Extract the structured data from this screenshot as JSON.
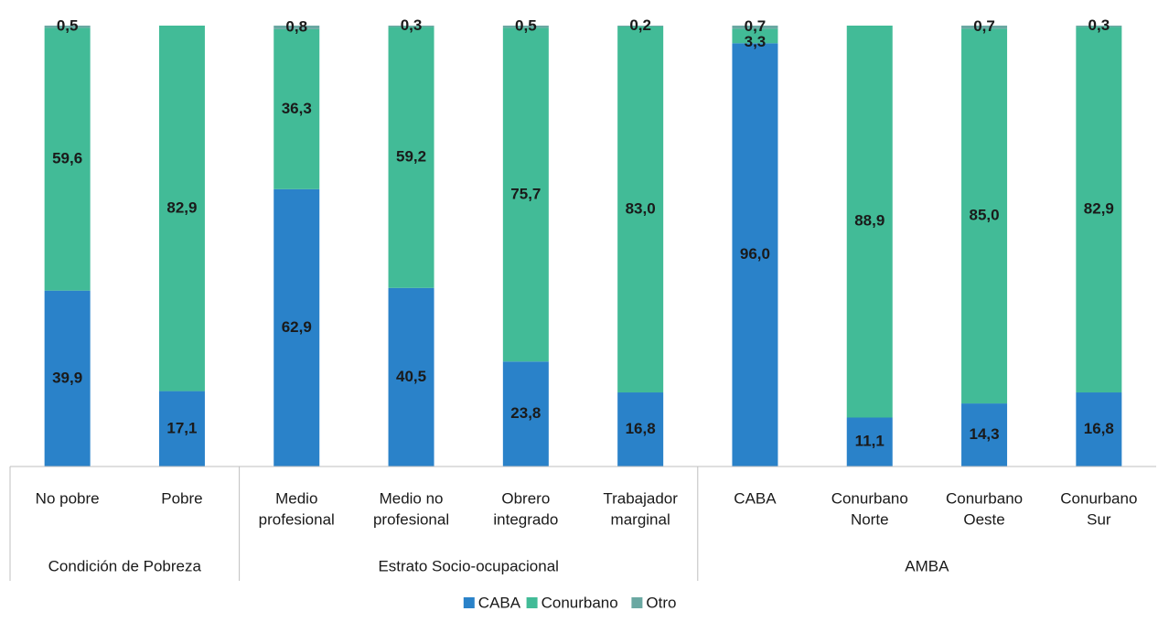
{
  "chart_data": {
    "type": "stacked_bar",
    "ylim": [
      0,
      100
    ],
    "groups": [
      {
        "label": "Condición de Pobreza",
        "categories": [
          [
            "No pobre"
          ],
          [
            "Pobre"
          ]
        ]
      },
      {
        "label": "Estrato Socio-ocupacional",
        "categories": [
          [
            "Medio",
            "profesional"
          ],
          [
            "Medio no",
            "profesional"
          ],
          [
            "Obrero",
            "integrado"
          ],
          [
            "Trabajador",
            "marginal"
          ]
        ]
      },
      {
        "label": "AMBA",
        "categories": [
          [
            "CABA"
          ],
          [
            "Conurbano",
            "Norte"
          ],
          [
            "Conurbano",
            "Oeste"
          ],
          [
            "Conurbano",
            "Sur"
          ]
        ]
      }
    ],
    "series": [
      {
        "name": "CABA",
        "color": "#2a82c9",
        "values": [
          39.9,
          17.1,
          62.9,
          40.5,
          23.8,
          16.8,
          96.0,
          11.1,
          14.3,
          16.8
        ],
        "value_labels": [
          "39,9",
          "17,1",
          "62,9",
          "40,5",
          "23,8",
          "16,8",
          "96,0",
          "11,1",
          "14,3",
          "16,8"
        ]
      },
      {
        "name": "Conurbano",
        "color": "#42bb97",
        "values": [
          59.6,
          82.9,
          36.3,
          59.2,
          75.7,
          83.0,
          3.3,
          88.9,
          85.0,
          82.9
        ],
        "value_labels": [
          "59,6",
          "82,9",
          "36,3",
          "59,2",
          "75,7",
          "83,0",
          "3,3",
          "88,9",
          "85,0",
          "82,9"
        ]
      },
      {
        "name": "Otro",
        "color": "#6aa8a2",
        "values": [
          0.5,
          0,
          0.8,
          0.3,
          0.5,
          0.2,
          0.7,
          0,
          0.7,
          0.3
        ],
        "value_labels": [
          "0,5",
          null,
          "0,8",
          "0,3",
          "0,5",
          "0,2",
          "0,7",
          null,
          "0,7",
          "0,3"
        ]
      }
    ]
  }
}
